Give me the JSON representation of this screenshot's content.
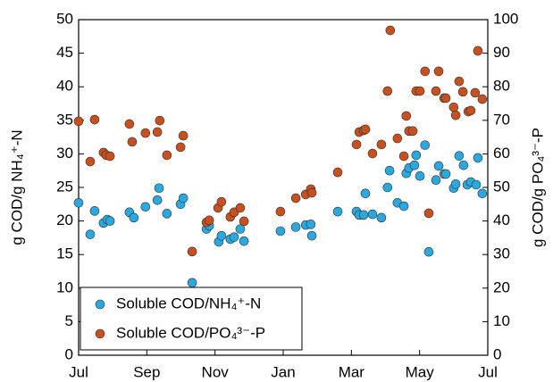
{
  "chart_data": {
    "type": "scatter",
    "y_label": "g COD/g NH₄⁺-N",
    "y2_label": "g COD/g PO₄³⁻-P",
    "xlim": [
      0,
      12
    ],
    "xticks": [
      {
        "value": 0,
        "label": "Jul"
      },
      {
        "value": 2,
        "label": "Sep"
      },
      {
        "value": 4,
        "label": "Nov"
      },
      {
        "value": 6,
        "label": "Jan"
      },
      {
        "value": 8,
        "label": "Mar"
      },
      {
        "value": 10,
        "label": "May"
      },
      {
        "value": 12,
        "label": "Jul"
      }
    ],
    "ylim": [
      0,
      50
    ],
    "yticks": [
      0,
      5,
      10,
      15,
      20,
      25,
      30,
      35,
      40,
      45,
      50
    ],
    "y2lim": [
      0,
      100
    ],
    "y2ticks": [
      0,
      10,
      20,
      30,
      40,
      50,
      60,
      70,
      80,
      90,
      100
    ],
    "legend": "lower left",
    "series": [
      {
        "name": "Soluble COD/NH₄⁺-N",
        "color": "#29a9e0",
        "axis": "y",
        "x": [
          0,
          0.34,
          0.47,
          0.73,
          0.84,
          0.92,
          1.49,
          1.62,
          1.96,
          2.36,
          2.31,
          2.59,
          2.99,
          3.07,
          3.33,
          3.75,
          3.83,
          4.11,
          4.19,
          4.45,
          4.56,
          4.74,
          4.85,
          5.92,
          6.37,
          6.66,
          6.81,
          6.84,
          7.6,
          8.15,
          8.23,
          8.36,
          8.41,
          8.62,
          8.88,
          9.06,
          9.12,
          9.35,
          9.54,
          9.61,
          9.69,
          9.85,
          9.9,
          10.01,
          10.16,
          10.27,
          10.48,
          10.56,
          10.72,
          10.77,
          11.0,
          11.06,
          11.16,
          11.29,
          11.4,
          11.5,
          11.66,
          11.71,
          11.84
        ],
        "values": [
          22.7,
          18.0,
          21.5,
          19.7,
          20.2,
          20.0,
          21.3,
          20.5,
          22.1,
          24.9,
          23.1,
          21.1,
          22.5,
          23.4,
          10.8,
          18.8,
          19.3,
          16.9,
          17.8,
          17.3,
          17.6,
          18.8,
          17.0,
          18.5,
          19.1,
          19.4,
          19.5,
          17.8,
          21.4,
          21.4,
          20.9,
          20.9,
          24.1,
          21.0,
          20.5,
          25.0,
          27.5,
          22.7,
          22.2,
          27.1,
          27.9,
          28.3,
          29.8,
          26.7,
          31.3,
          15.4,
          26.1,
          28.2,
          27.0,
          27.0,
          24.9,
          25.5,
          29.7,
          28.3,
          25.4,
          25.8,
          25.4,
          29.4,
          24.1
        ]
      },
      {
        "name": "Soluble COD/PO₄³⁻-P",
        "color": "#c8501e",
        "axis": "y2",
        "x": [
          0,
          0.34,
          0.47,
          0.73,
          0.81,
          0.92,
          1.49,
          1.57,
          1.96,
          2.31,
          2.38,
          2.59,
          2.99,
          3.07,
          3.33,
          3.75,
          3.83,
          4.09,
          4.19,
          4.45,
          4.56,
          4.74,
          4.85,
          5.92,
          6.37,
          6.66,
          6.81,
          6.84,
          7.6,
          8.15,
          8.23,
          8.36,
          8.41,
          8.62,
          8.88,
          9.06,
          9.14,
          9.35,
          9.54,
          9.61,
          9.69,
          9.8,
          9.9,
          10.01,
          10.16,
          10.27,
          10.48,
          10.56,
          10.72,
          10.77,
          11.0,
          11.06,
          11.16,
          11.27,
          11.43,
          11.5,
          11.63,
          11.71,
          11.84
        ],
        "values": [
          69.7,
          57.7,
          70.2,
          60.4,
          59.6,
          59.3,
          68.9,
          63.6,
          66.2,
          66.5,
          69.9,
          59.6,
          62.0,
          65.4,
          30.9,
          39.6,
          40.2,
          43.9,
          45.7,
          41.2,
          42.6,
          43.9,
          39.9,
          42.8,
          46.8,
          47.9,
          49.5,
          48.4,
          54.5,
          62.8,
          66.5,
          67.0,
          67.3,
          60.1,
          62.8,
          78.7,
          96.8,
          64.6,
          59.3,
          71.3,
          66.8,
          66.8,
          78.7,
          78.7,
          84.6,
          42.3,
          78.7,
          84.6,
          76.6,
          76.6,
          73.9,
          71.5,
          81.6,
          78.5,
          72.6,
          72.9,
          78.2,
          90.7,
          76.3
        ]
      }
    ]
  }
}
